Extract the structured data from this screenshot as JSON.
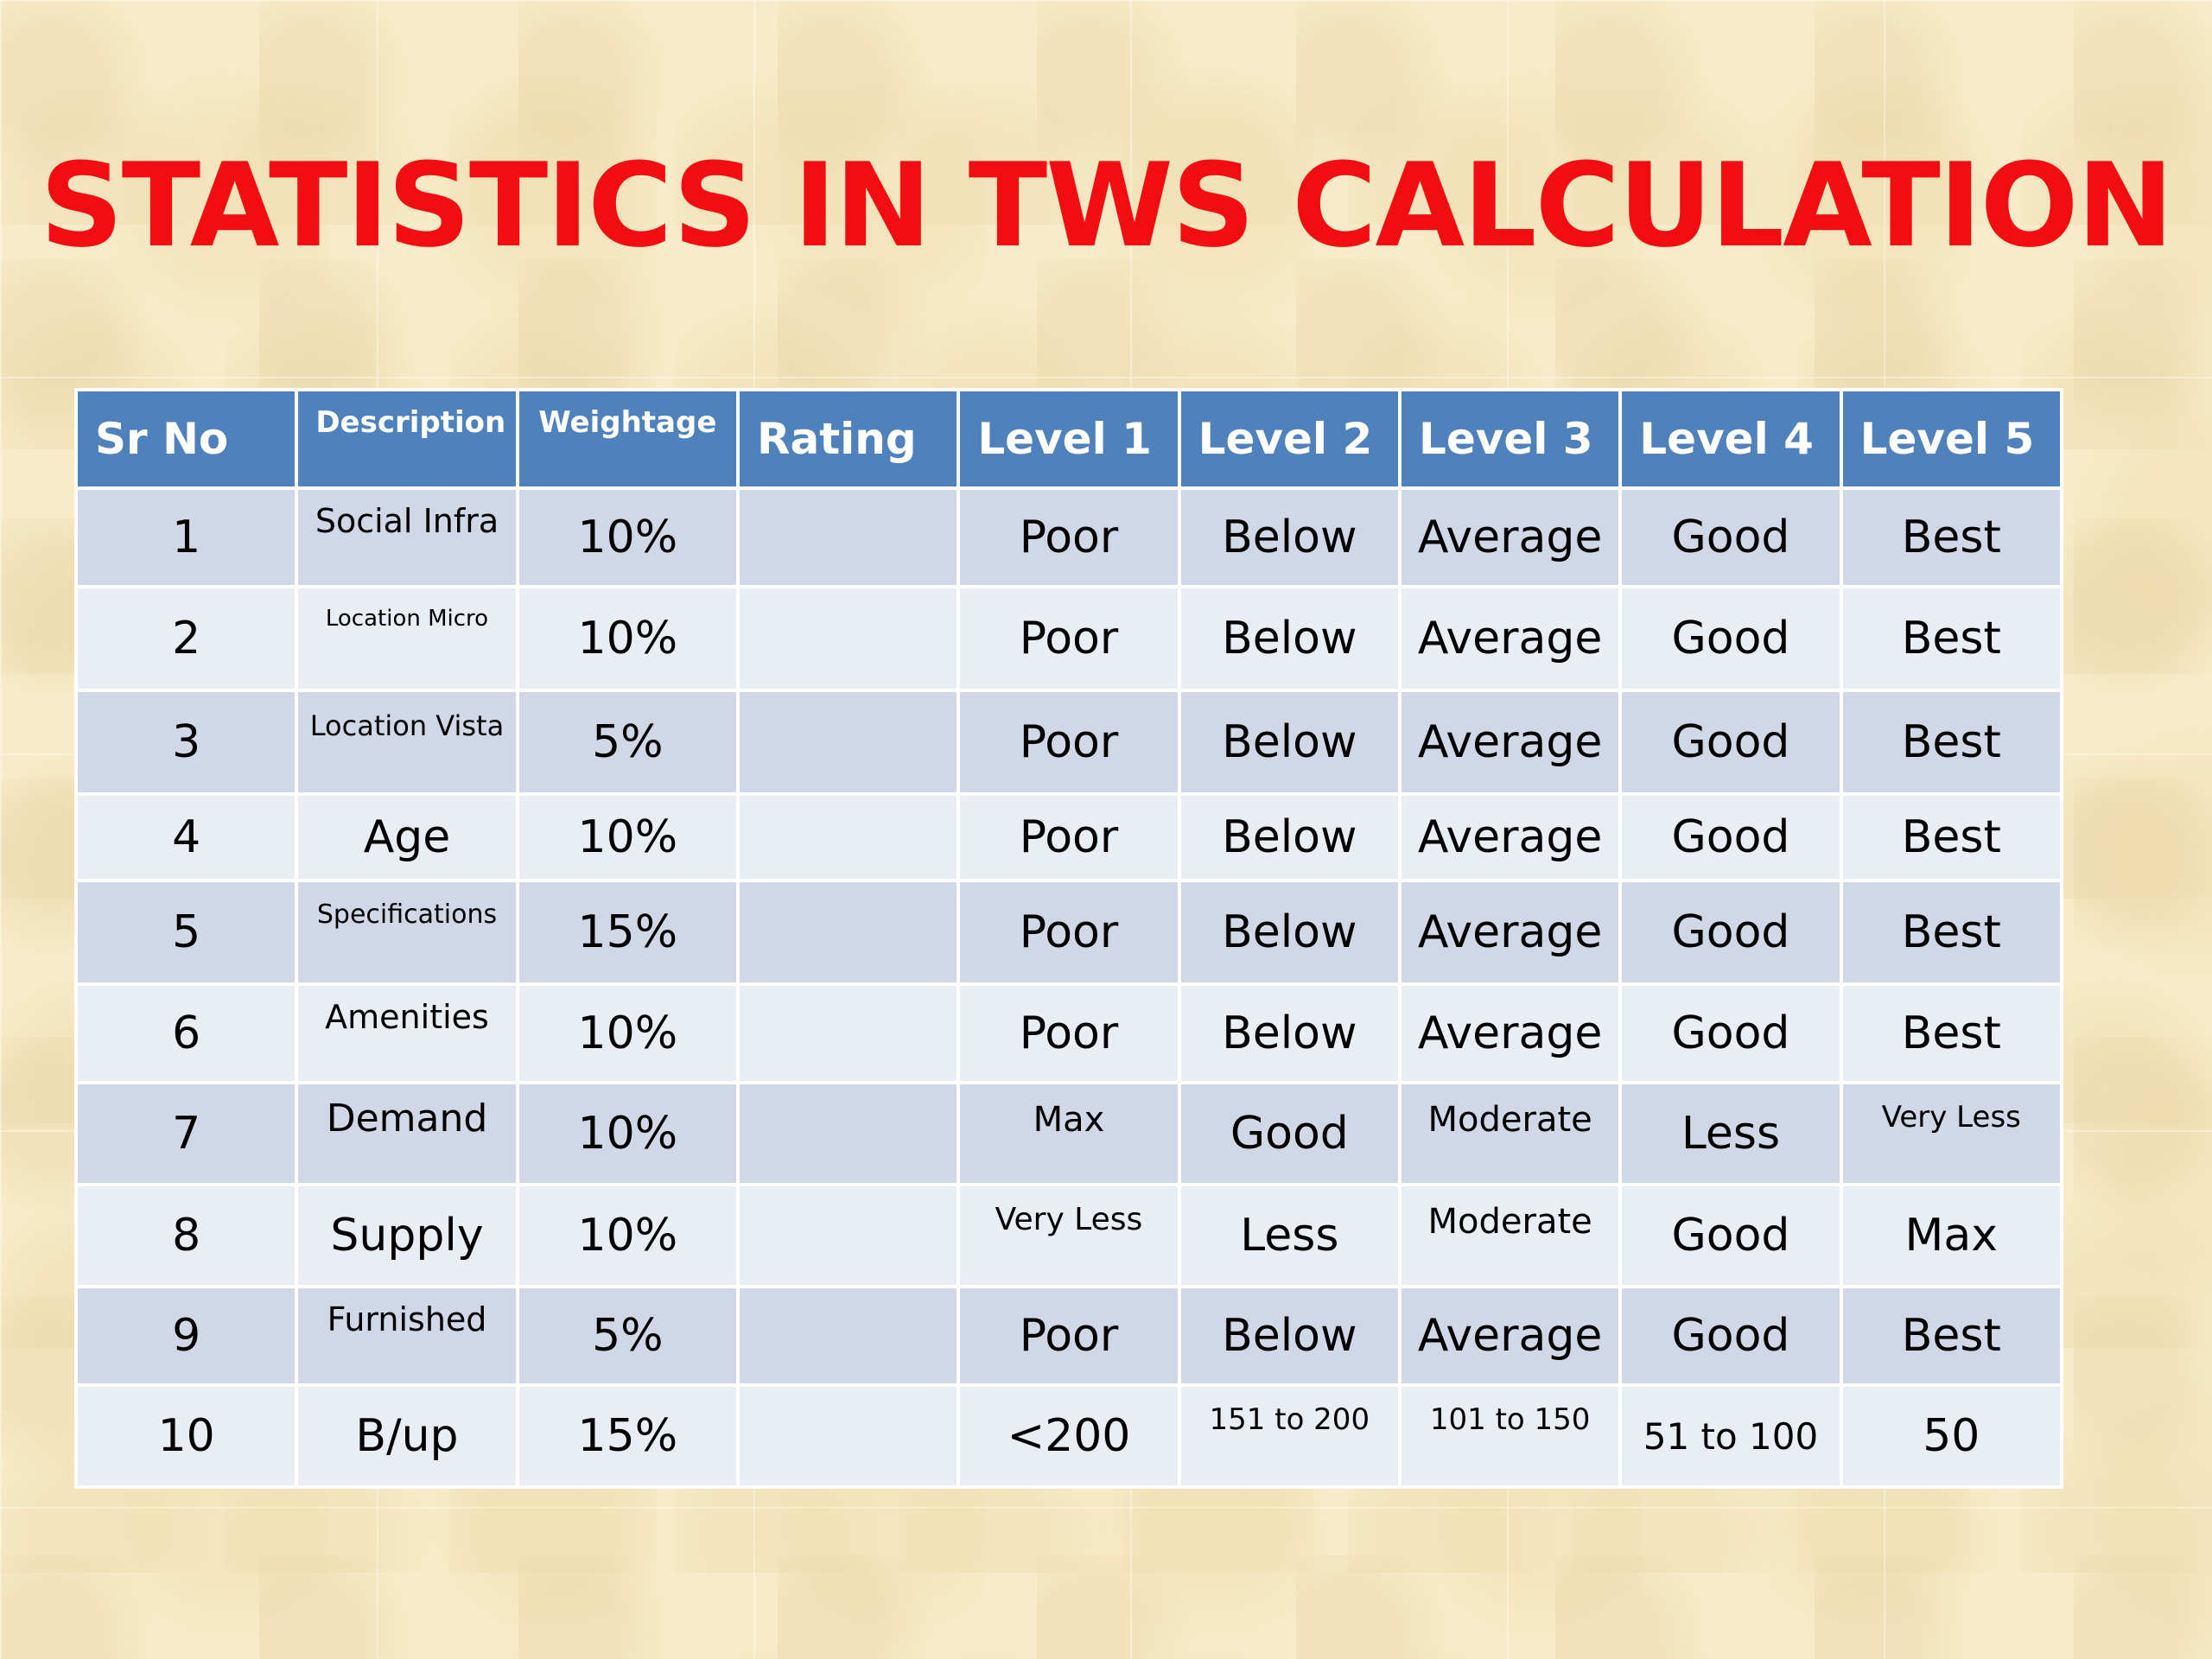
{
  "title": "STATISTICS IN TWS CALCULATION",
  "headers": [
    "Sr No",
    "Description",
    "Weightage",
    "Rating",
    "Level 1",
    "Level 2",
    "Level 3",
    "Level 4",
    "Level 5"
  ],
  "rows": [
    {
      "sr": "1",
      "description": "Social Infra",
      "weightage": "10%",
      "rating": "",
      "level1": "Poor",
      "level2": "Below",
      "level3": "Average",
      "level4": "Good",
      "level5": "Best"
    },
    {
      "sr": "2",
      "description": "Location Micro",
      "weightage": "10%",
      "rating": "",
      "level1": "Poor",
      "level2": "Below",
      "level3": "Average",
      "level4": "Good",
      "level5": "Best"
    },
    {
      "sr": "3",
      "description": "Location Vista",
      "weightage": "5%",
      "rating": "",
      "level1": "Poor",
      "level2": "Below",
      "level3": "Average",
      "level4": "Good",
      "level5": "Best"
    },
    {
      "sr": "4",
      "description": "Age",
      "weightage": "10%",
      "rating": "",
      "level1": "Poor",
      "level2": "Below",
      "level3": "Average",
      "level4": "Good",
      "level5": "Best"
    },
    {
      "sr": "5",
      "description": "Specifications",
      "weightage": "15%",
      "rating": "",
      "level1": "Poor",
      "level2": "Below",
      "level3": "Average",
      "level4": "Good",
      "level5": "Best"
    },
    {
      "sr": "6",
      "description": "Amenities",
      "weightage": "10%",
      "rating": "",
      "level1": "Poor",
      "level2": "Below",
      "level3": "Average",
      "level4": "Good",
      "level5": "Best"
    },
    {
      "sr": "7",
      "description": "Demand",
      "weightage": "10%",
      "rating": "",
      "level1": "Max",
      "level2": "Good",
      "level3": "Moderate",
      "level4": "Less",
      "level5": "Very Less"
    },
    {
      "sr": "8",
      "description": "Supply",
      "weightage": "10%",
      "rating": "",
      "level1": "Very Less",
      "level2": "Less",
      "level3": "Moderate",
      "level4": "Good",
      "level5": "Max"
    },
    {
      "sr": "9",
      "description": "Furnished",
      "weightage": "5%",
      "rating": "",
      "level1": "Poor",
      "level2": "Below",
      "level3": "Average",
      "level4": "Good",
      "level5": "Best"
    },
    {
      "sr": "10",
      "description": "B/up",
      "weightage": "15%",
      "rating": "",
      "level1": "<200",
      "level2": "151 to 200",
      "level3": "101 to 150",
      "level4": "51 to 100",
      "level5": "50"
    }
  ]
}
